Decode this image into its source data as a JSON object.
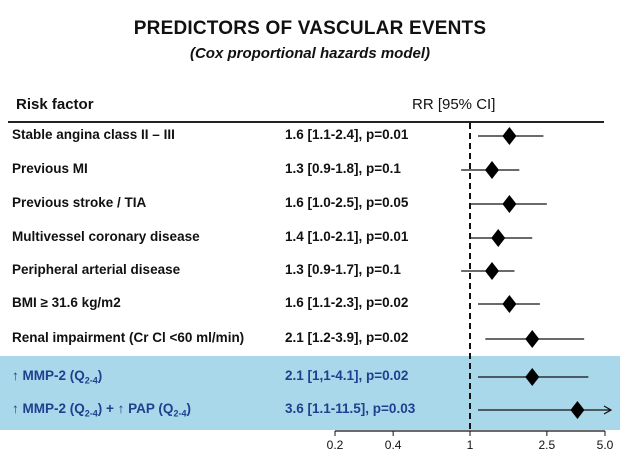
{
  "chart_data": {
    "type": "forest",
    "title": "PREDICTORS OF VASCULAR EVENTS",
    "subtitle": "(Cox proportional hazards model)",
    "column_headers": {
      "factor": "Risk factor",
      "estimate": "RR [95% CI]"
    },
    "x_scale": "log",
    "xlim": [
      0.2,
      5.0
    ],
    "x_ticks": [
      0.2,
      0.4,
      1,
      2.5,
      5.0
    ],
    "x_tick_labels": [
      "0.2",
      "0.4",
      "1",
      "2.5",
      "5.0"
    ],
    "reference_line": 1,
    "rows": [
      {
        "label": "Stable angina class II – III",
        "rr_text": "1.6 [1.1-2.4], p=0.01",
        "rr": 1.6,
        "ci": [
          1.1,
          2.4
        ],
        "highlight": false
      },
      {
        "label": "Previous MI",
        "rr_text": "1.3 [0.9-1.8], p=0.1",
        "rr": 1.3,
        "ci": [
          0.9,
          1.8
        ],
        "highlight": false
      },
      {
        "label": "Previous stroke / TIA",
        "rr_text": "1.6 [1.0-2.5], p=0.05",
        "rr": 1.6,
        "ci": [
          1.0,
          2.5
        ],
        "highlight": false
      },
      {
        "label": "Multivessel coronary disease",
        "rr_text": "1.4 [1.0-2.1], p=0.01",
        "rr": 1.4,
        "ci": [
          1.0,
          2.1
        ],
        "highlight": false
      },
      {
        "label": "Peripheral arterial disease",
        "rr_text": "1.3 [0.9-1.7], p=0.1",
        "rr": 1.3,
        "ci": [
          0.9,
          1.7
        ],
        "highlight": false
      },
      {
        "label": "BMI ≥ 31.6 kg/m2",
        "rr_text": "1.6 [1.1-2.3], p=0.02",
        "rr": 1.6,
        "ci": [
          1.1,
          2.3
        ],
        "highlight": false
      },
      {
        "label": "Renal impairment (Cr Cl <60 ml/min)",
        "rr_text": "2.1 [1.2-3.9], p=0.02",
        "rr": 2.1,
        "ci": [
          1.2,
          3.9
        ],
        "highlight": false
      },
      {
        "label_parts": {
          "arrow1": "↑",
          "text1": "MMP-2 (Q",
          "sub1": "2-4",
          "end1": ")"
        },
        "rr_text": "2.1 [1,1-4.1], p=0.02",
        "rr": 2.1,
        "ci": [
          1.1,
          4.1
        ],
        "highlight": true
      },
      {
        "label_parts": {
          "arrow1": "↑",
          "text1": "MMP-2 (Q",
          "sub1": "2-4",
          "end1": ") + ",
          "arrow2": "↑",
          "text2": "PAP (Q",
          "sub2": "2-4",
          "end2": ")"
        },
        "rr_text": "3.6 [1.1-11.5], p=0.03",
        "rr": 3.6,
        "ci": [
          1.1,
          11.5
        ],
        "ci_truncated_upper": true,
        "highlight": true
      }
    ],
    "colors": {
      "highlight_band": "#a9d8ea",
      "highlight_text": "#1f3f8f",
      "marker": "#000000"
    }
  }
}
